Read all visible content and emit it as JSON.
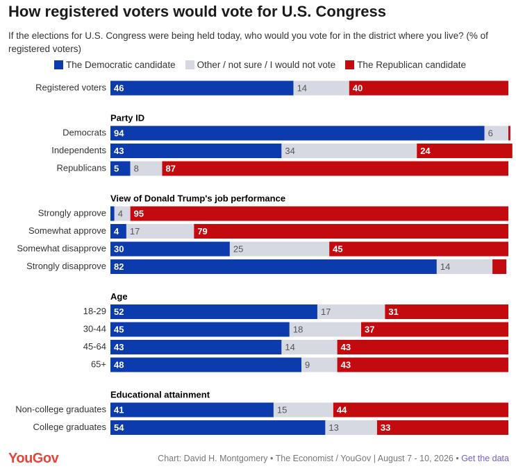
{
  "chart_data": {
    "type": "stacked-bar",
    "title": "How registered voters would vote for U.S. Congress",
    "subtitle": "If the elections for U.S. Congress were being held today, who would you vote for in the district where you live? (% of registered voters)",
    "xlim": [
      0,
      100
    ],
    "series": [
      {
        "name": "The Democratic candidate",
        "color": "#0b3bad"
      },
      {
        "name": "Other / not sure / I would not vote",
        "color": "#d6d9e1"
      },
      {
        "name": "The Republican candidate",
        "color": "#c30a0e"
      }
    ],
    "groups": [
      {
        "categories": [
          "Registered voters"
        ],
        "series": [
          {
            "values": [
              46
            ]
          },
          {
            "values": [
              14
            ]
          },
          {
            "values": [
              40
            ]
          }
        ]
      },
      {
        "title": "Party ID",
        "categories": [
          "Democrats",
          "Independents",
          "Republicans"
        ],
        "series": [
          {
            "values": [
              94,
              43,
              5
            ]
          },
          {
            "values": [
              6,
              34,
              8
            ]
          },
          {
            "values": [
              0.5,
              24,
              87
            ]
          }
        ]
      },
      {
        "title": "View of Donald Trump's job performance",
        "categories": [
          "Strongly approve",
          "Somewhat approve",
          "Somewhat disapprove",
          "Strongly disapprove"
        ],
        "series": [
          {
            "values": [
              1,
              4,
              30,
              82
            ]
          },
          {
            "values": [
              4,
              17,
              25,
              14
            ]
          },
          {
            "values": [
              95,
              79,
              45,
              3.5
            ]
          }
        ]
      },
      {
        "title": "Age",
        "categories": [
          "18-29",
          "30-44",
          "45-64",
          "65+"
        ],
        "series": [
          {
            "values": [
              52,
              45,
              43,
              48
            ]
          },
          {
            "values": [
              17,
              18,
              14,
              9
            ]
          },
          {
            "values": [
              31,
              37,
              43,
              43
            ]
          }
        ]
      },
      {
        "title": "Educational attainment",
        "categories": [
          "Non-college graduates",
          "College graduates"
        ],
        "series": [
          {
            "values": [
              41,
              54
            ]
          },
          {
            "values": [
              15,
              13
            ]
          },
          {
            "values": [
              44,
              33
            ]
          }
        ]
      }
    ],
    "logo": "YouGov",
    "credit": "Chart: David H. Montgomery • The Economist / YouGov | August 7 - 10, 2026 •",
    "link": "Get the data"
  }
}
